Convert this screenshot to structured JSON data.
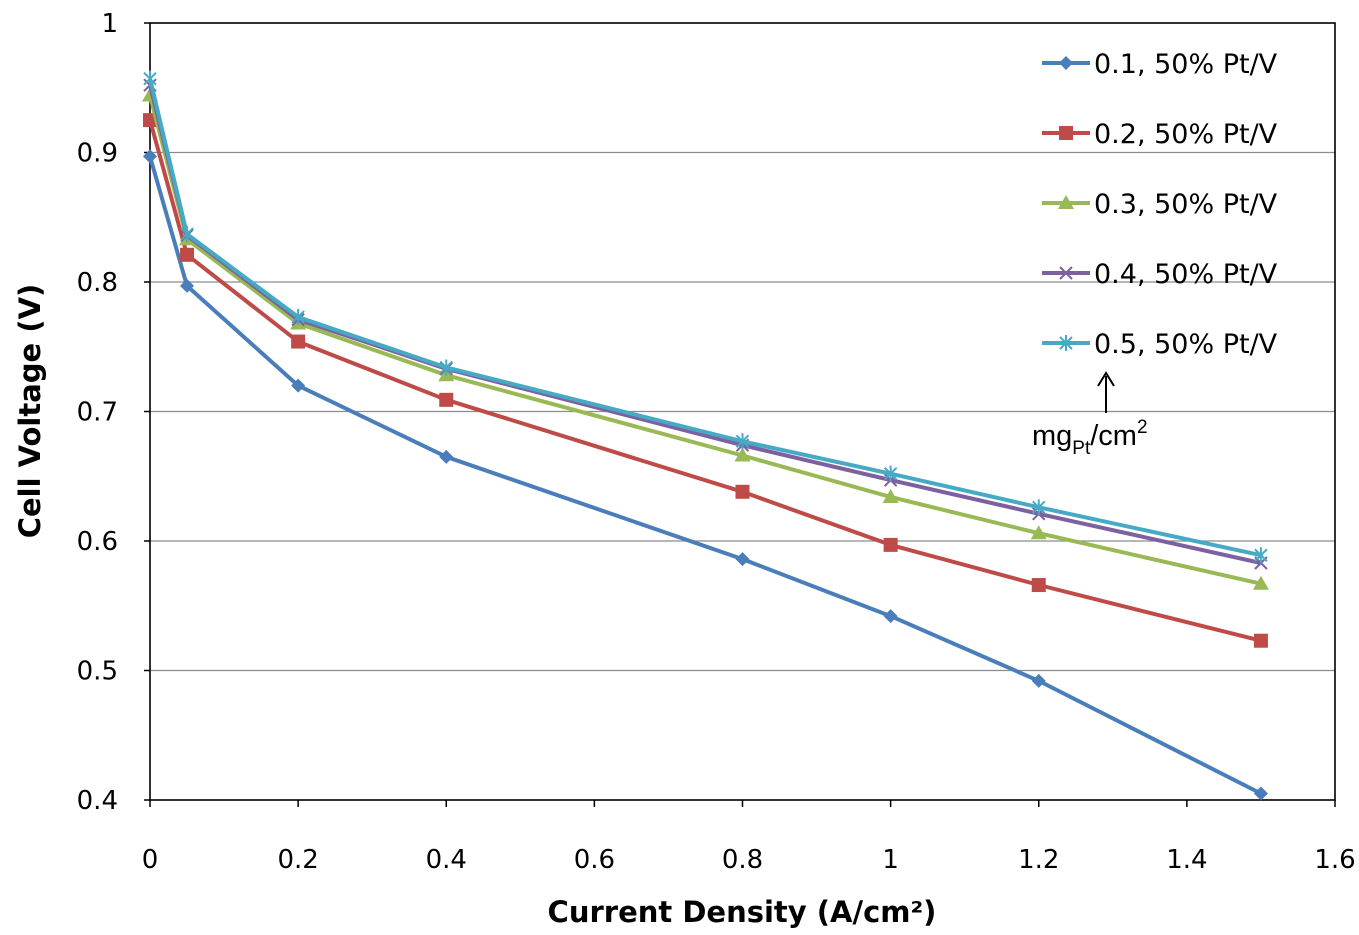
{
  "chart_data": {
    "type": "line",
    "xlabel": "Current Density (A/cm²)",
    "ylabel": "Cell Voltage (V)",
    "xlim": [
      0,
      1.6
    ],
    "ylim": [
      0.4,
      1.0
    ],
    "x_ticks": [
      "0",
      "0.2",
      "0.4",
      "0.6",
      "0.8",
      "1",
      "1.2",
      "1.4",
      "1.6"
    ],
    "y_ticks": [
      "0.4",
      "0.5",
      "0.6",
      "0.7",
      "0.8",
      "0.9",
      "1"
    ],
    "grid": "horizontal",
    "legend_position": "top-right",
    "x": [
      0,
      0.05,
      0.2,
      0.4,
      0.8,
      1.0,
      1.2,
      1.5
    ],
    "series": [
      {
        "name": "0.1, 50% Pt/V",
        "color": "#4a7ebb",
        "marker": "diamond",
        "values": [
          0.897,
          0.797,
          0.72,
          0.665,
          0.586,
          0.542,
          0.492,
          0.405
        ]
      },
      {
        "name": "0.2, 50% Pt/V",
        "color": "#be4b48",
        "marker": "square",
        "values": [
          0.925,
          0.821,
          0.754,
          0.709,
          0.638,
          0.597,
          0.566,
          0.523
        ]
      },
      {
        "name": "0.3, 50% Pt/V",
        "color": "#98b954",
        "marker": "triangle",
        "values": [
          0.944,
          0.833,
          0.768,
          0.728,
          0.666,
          0.634,
          0.606,
          0.567
        ]
      },
      {
        "name": "0.4, 50% Pt/V",
        "color": "#7d60a0",
        "marker": "x",
        "values": [
          0.952,
          0.836,
          0.771,
          0.733,
          0.674,
          0.647,
          0.621,
          0.583
        ]
      },
      {
        "name": "0.5, 50% Pt/V",
        "color": "#46aac5",
        "marker": "star",
        "values": [
          0.957,
          0.837,
          0.773,
          0.734,
          0.677,
          0.652,
          0.626,
          0.589
        ]
      }
    ],
    "annotation": {
      "main": "mg",
      "sub": "Pt",
      "unit": "/cm",
      "sup": "2"
    }
  }
}
